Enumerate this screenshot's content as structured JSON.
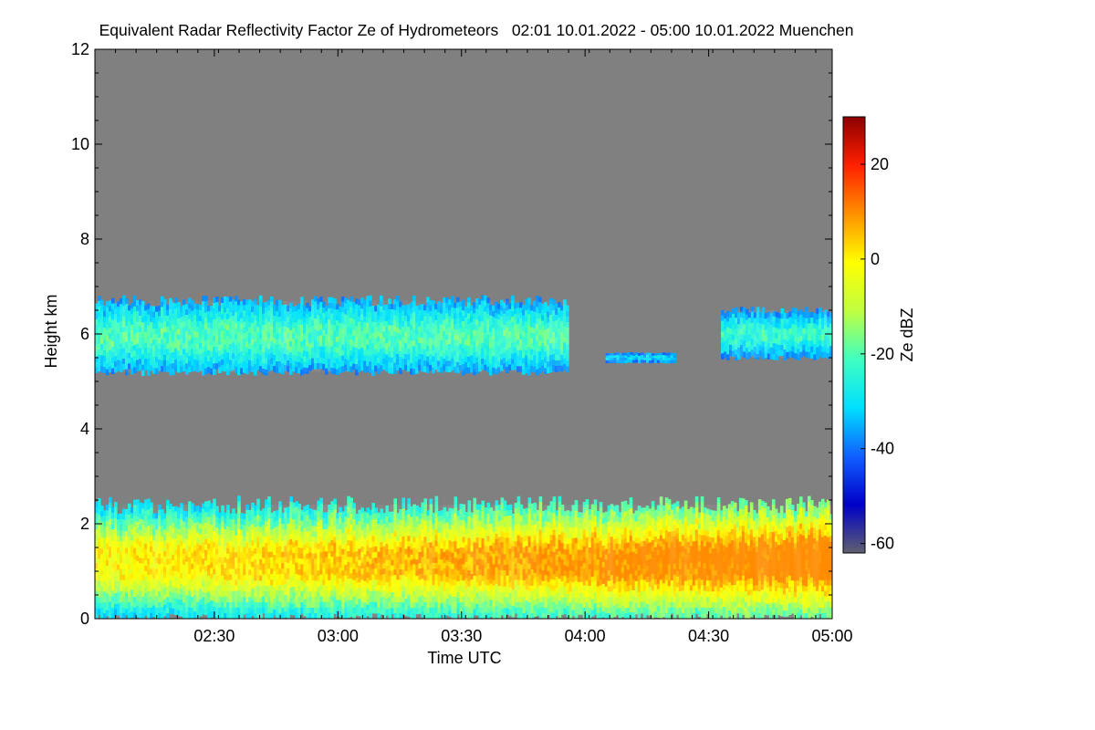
{
  "chart_data": {
    "type": "heatmap",
    "title": "Equivalent Radar Reflectivity Factor Ze of Hydrometeors   02:01 10.01.2022 - 05:00 10.01.2022 Muenchen",
    "xlabel": "Time UTC",
    "ylabel": "Height km",
    "colorbar_label": "Ze dBZ",
    "x_range": [
      "02:01",
      "05:00"
    ],
    "ylim": [
      0,
      12
    ],
    "zlim": [
      -62,
      30
    ],
    "x_ticks": [
      "02:30",
      "03:00",
      "03:30",
      "04:00",
      "04:30",
      "05:00"
    ],
    "y_ticks": [
      0,
      2,
      4,
      6,
      8,
      10,
      12
    ],
    "colorbar_ticks": [
      -60,
      -40,
      -20,
      0,
      20
    ],
    "background_color": "#808080",
    "colormap": [
      "#606070",
      "#0000c8",
      "#1060ff",
      "#00e0ff",
      "#40ffc0",
      "#c0ff40",
      "#ffff00",
      "#ff9000",
      "#ff2000",
      "#8b0000"
    ],
    "layers": [
      {
        "name": "upper cloud",
        "time_start": "02:01",
        "time_end": "03:56",
        "base_km": 5.2,
        "top_km": 6.7,
        "ze_min": -42,
        "ze_max": -15
      },
      {
        "name": "upper cloud fragments",
        "time_start": "04:05",
        "time_end": "04:22",
        "base_km": 5.4,
        "top_km": 5.6,
        "ze_min": -40,
        "ze_max": -28
      },
      {
        "name": "upper cloud (late)",
        "time_start": "04:33",
        "time_end": "05:00",
        "base_km": 5.5,
        "top_km": 6.5,
        "ze_min": -42,
        "ze_max": -18
      },
      {
        "name": "lower precipitation layer",
        "time_start": "02:01",
        "time_end": "05:00",
        "base_km": 0.0,
        "top_km": 2.4,
        "ze_min": -45,
        "ze_max": 10
      }
    ]
  }
}
